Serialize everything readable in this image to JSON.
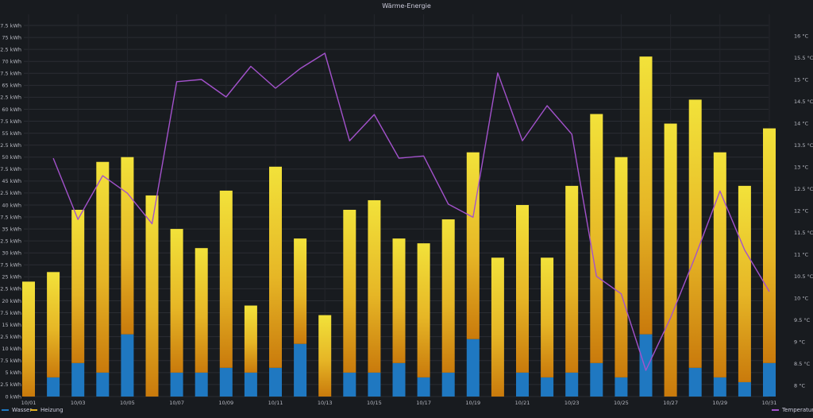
{
  "chart_data": {
    "type": "bar",
    "title": "Wärme-Energie",
    "stacked": true,
    "categories": [
      "10/01",
      "10/02",
      "10/03",
      "10/04",
      "10/05",
      "10/06",
      "10/07",
      "10/08",
      "10/09",
      "10/10",
      "10/11",
      "10/12",
      "10/13",
      "10/14",
      "10/15",
      "10/16",
      "10/17",
      "10/18",
      "10/19",
      "10/20",
      "10/21",
      "10/22",
      "10/23",
      "10/24",
      "10/25",
      "10/26",
      "10/27",
      "10/28",
      "10/29",
      "10/30",
      "10/31"
    ],
    "x_tick_labels": [
      "10/01",
      "10/03",
      "10/05",
      "10/07",
      "10/09",
      "10/11",
      "10/13",
      "10/15",
      "10/17",
      "10/19",
      "10/21",
      "10/23",
      "10/25",
      "10/27",
      "10/29",
      "10/31"
    ],
    "series": [
      {
        "name": "Wasser",
        "axis": "left",
        "color": "#1f78c1",
        "values": [
          0,
          4,
          7,
          5,
          13,
          0,
          5,
          5,
          6,
          5,
          6,
          11,
          0,
          5,
          5,
          7,
          4,
          5,
          12,
          0,
          5,
          4,
          5,
          7,
          4,
          13,
          0,
          6,
          4,
          3,
          7
        ]
      },
      {
        "name": "Heizung",
        "axis": "left",
        "color": "#e0a020",
        "values": [
          24,
          22,
          32,
          44,
          37,
          42,
          30,
          26,
          37,
          14,
          42,
          22,
          17,
          34,
          36,
          26,
          28,
          32,
          39,
          29,
          35,
          25,
          39,
          52,
          46,
          58,
          57,
          56,
          47,
          41,
          49
        ]
      },
      {
        "name": "Temperatur",
        "axis": "right",
        "type": "line",
        "color": "#a352cc",
        "values": [
          null,
          13.2,
          11.8,
          12.8,
          12.4,
          11.7,
          14.95,
          15.0,
          14.6,
          15.3,
          14.8,
          15.25,
          15.6,
          13.6,
          14.2,
          13.2,
          13.25,
          12.15,
          11.85,
          15.15,
          13.6,
          14.4,
          13.75,
          10.5,
          10.1,
          8.35,
          9.55,
          10.95,
          12.45,
          11.1,
          10.15
        ]
      }
    ],
    "y_left": {
      "min": 0,
      "max": 77.5,
      "step": 2.5,
      "unit": "kWh"
    },
    "y_right": {
      "min": 7.75,
      "max": 16,
      "step": 0.5,
      "unit": "°C"
    },
    "left_tick_labels": [
      "0 kWh",
      "2.5 kWh",
      "5 kWh",
      "7.5 kWh",
      "10 kWh",
      "12.5 kWh",
      "15 kWh",
      "17.5 kWh",
      "20 kWh",
      "22.5 kWh",
      "25 kWh",
      "27.5 kWh",
      "30 kWh",
      "32.5 kWh",
      "35 kWh",
      "37.5 kWh",
      "40 kWh",
      "42.5 kWh",
      "45 kWh",
      "47.5 kWh",
      "50 kWh",
      "52.5 kWh",
      "55 kWh",
      "57.5 kWh",
      "60 kWh",
      "62.5 kWh",
      "65 kWh",
      "67.5 kWh",
      "70 kWh",
      "72.5 kWh",
      "75 kWh",
      "77.5 kWh"
    ],
    "right_tick_labels": [
      "8 °C",
      "8.5 °C",
      "9 °C",
      "9.5 °C",
      "10 °C",
      "10.5 °C",
      "11 °C",
      "11.5 °C",
      "12 °C",
      "12.5 °C",
      "13 °C",
      "13.5 °C",
      "14 °C",
      "14.5 °C",
      "15 °C",
      "15.5 °C",
      "16 °C"
    ],
    "legend": [
      "Wasser",
      "Heizung",
      "Temperatur"
    ],
    "grid": true
  }
}
